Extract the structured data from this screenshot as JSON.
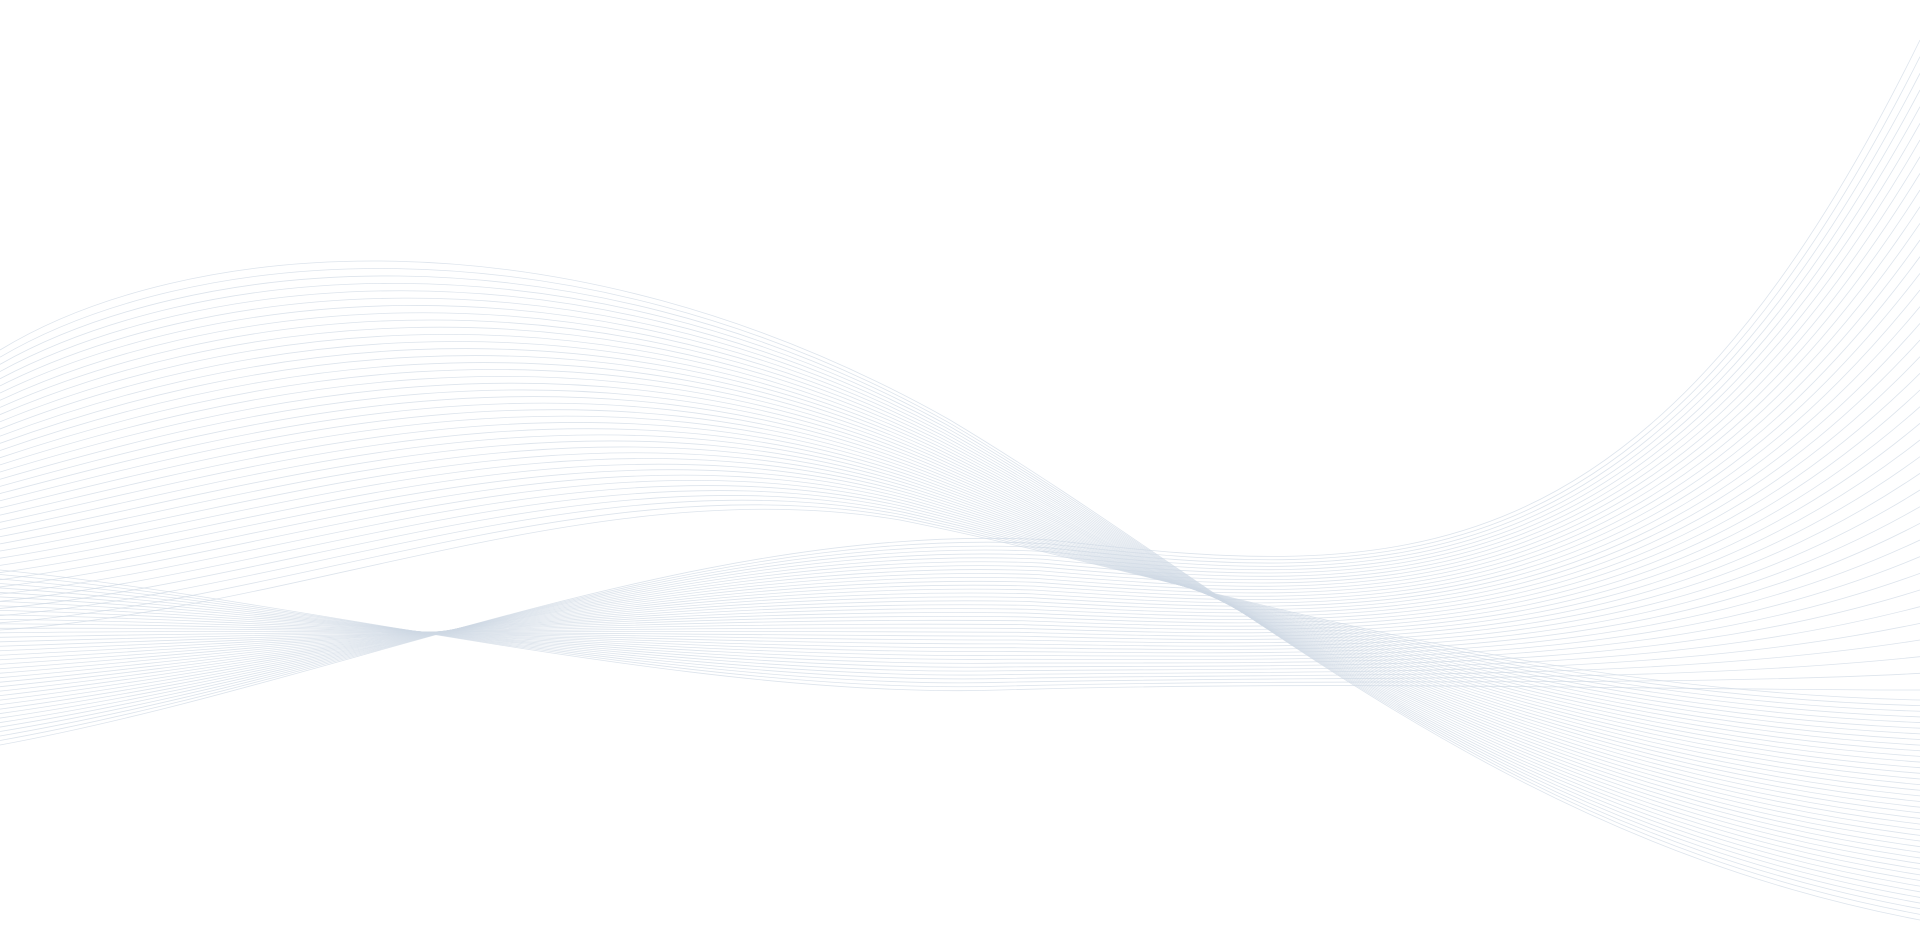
{
  "background": {
    "color": "#ffffff",
    "line_color": "#cfd8e4",
    "pattern": "wave-lines"
  }
}
